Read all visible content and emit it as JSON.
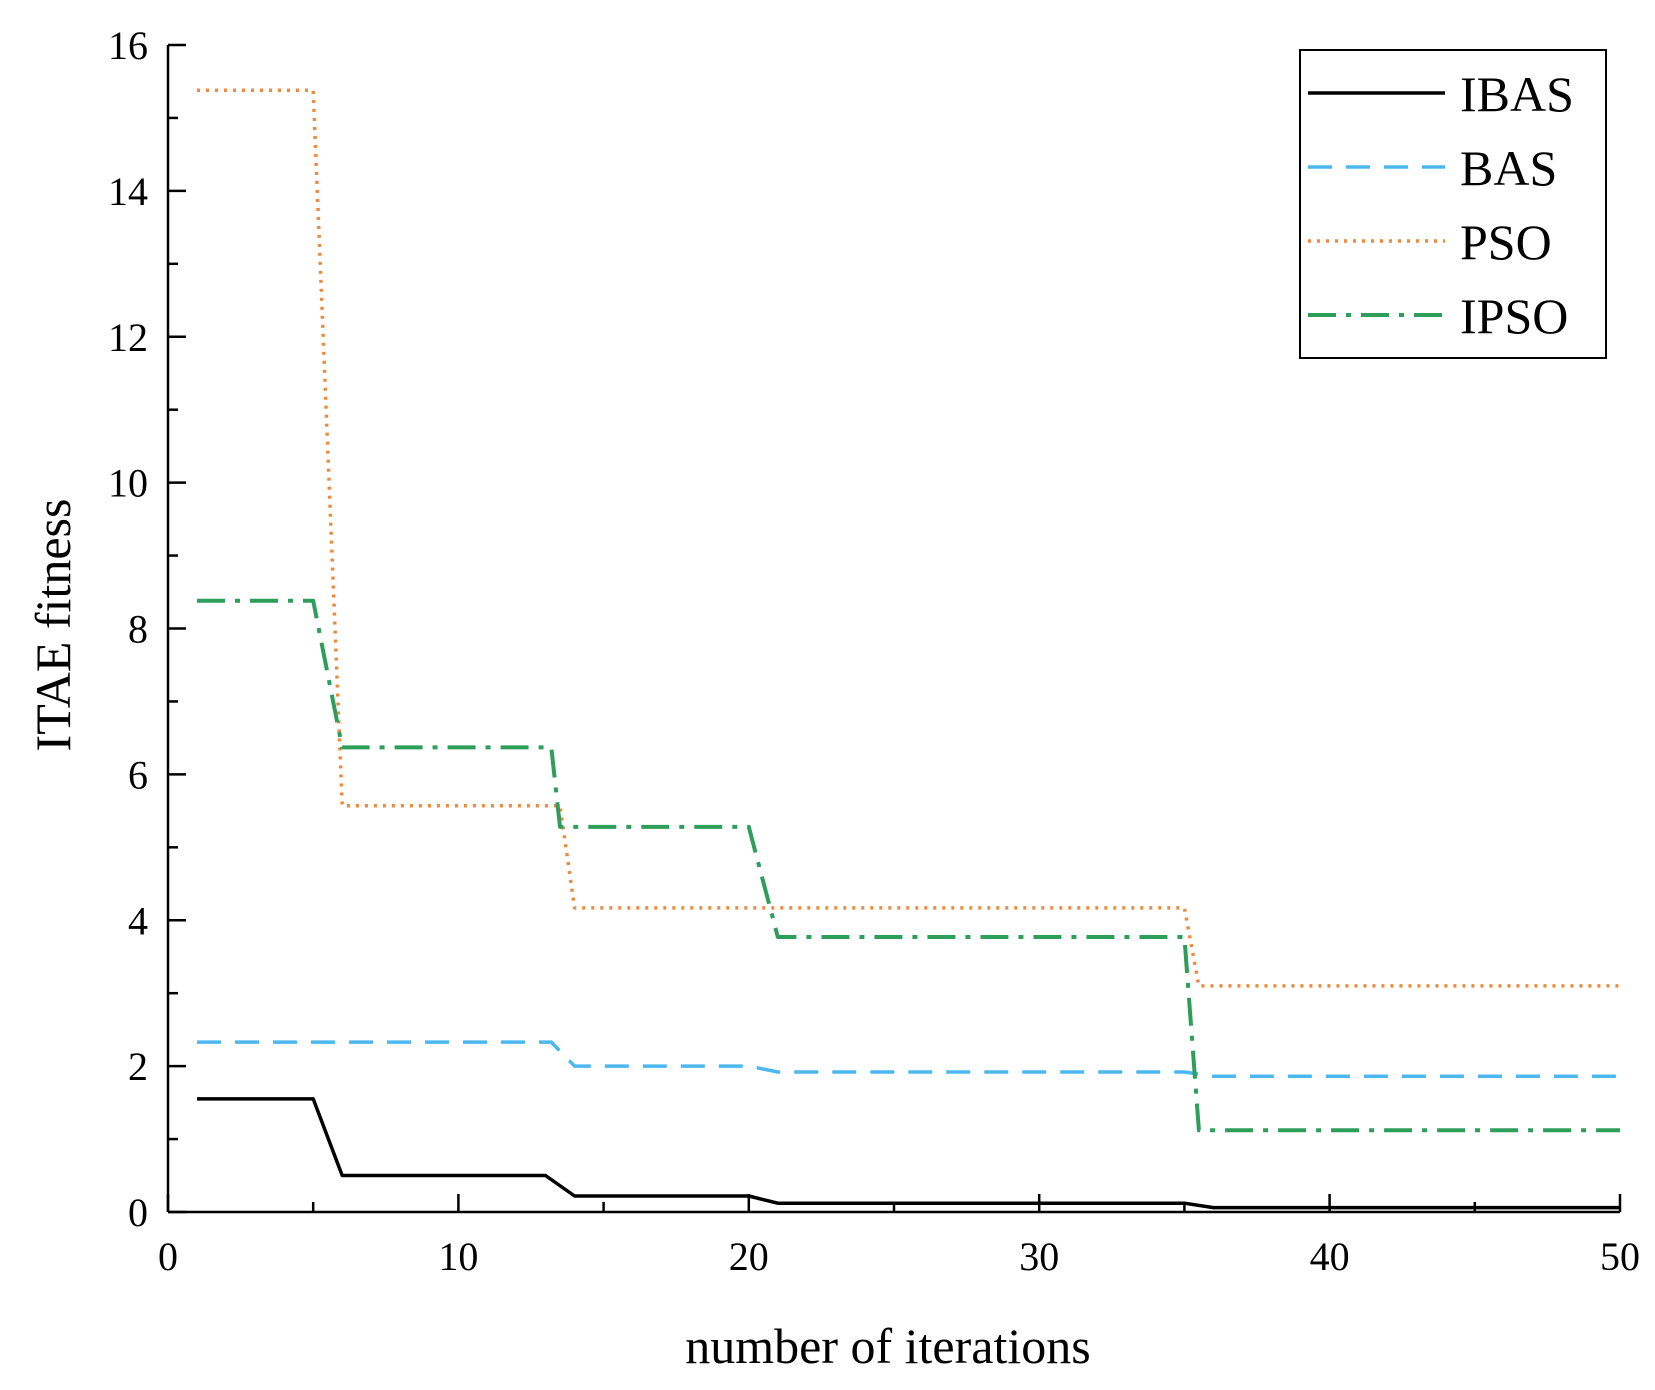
{
  "chart_data": {
    "type": "line",
    "title": "",
    "xlabel": "number of iterations",
    "ylabel": "ITAE fitness",
    "xlim": [
      0,
      50
    ],
    "ylim": [
      0,
      16
    ],
    "xticks": [
      0,
      10,
      20,
      30,
      40,
      50
    ],
    "yticks": [
      0,
      2,
      4,
      6,
      8,
      10,
      12,
      14,
      16
    ],
    "grid": false,
    "legend_position": "top-right",
    "series": [
      {
        "name": "IBAS",
        "color": "#000000",
        "style": "solid",
        "x": [
          1,
          5,
          6,
          13,
          14,
          20,
          21,
          35,
          36,
          50
        ],
        "y": [
          1.55,
          1.55,
          0.5,
          0.5,
          0.22,
          0.22,
          0.12,
          0.12,
          0.06,
          0.06
        ]
      },
      {
        "name": "BAS",
        "color": "#4db8f0",
        "style": "dashed",
        "x": [
          1,
          13.2,
          14,
          20,
          21,
          35,
          36,
          50
        ],
        "y": [
          2.33,
          2.33,
          2.0,
          2.0,
          1.92,
          1.92,
          1.86,
          1.86
        ]
      },
      {
        "name": "PSO",
        "color": "#ef8a3c",
        "style": "dotted",
        "x": [
          1,
          5,
          6,
          13.5,
          14,
          35,
          35.5,
          50
        ],
        "y": [
          15.38,
          15.38,
          5.57,
          5.57,
          4.17,
          4.17,
          3.1,
          3.1
        ]
      },
      {
        "name": "IPSO",
        "color": "#2e9e5b",
        "style": "dashdot",
        "x": [
          1,
          5,
          6,
          13.2,
          13.5,
          20,
          21,
          35,
          35.5,
          50
        ],
        "y": [
          8.38,
          8.38,
          6.37,
          6.37,
          5.28,
          5.28,
          3.77,
          3.77,
          1.12,
          1.12
        ]
      }
    ]
  }
}
